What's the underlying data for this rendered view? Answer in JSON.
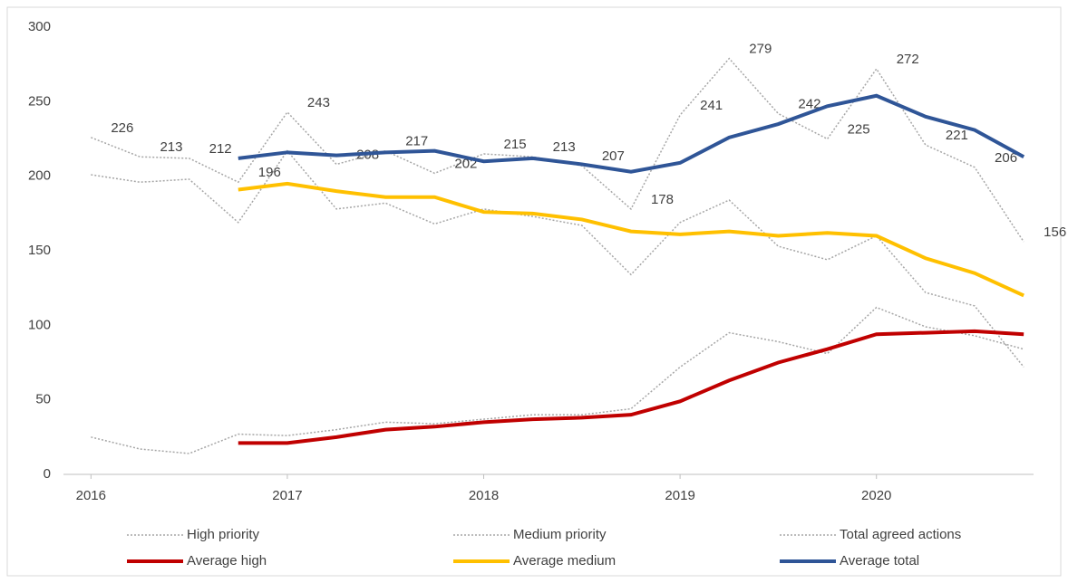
{
  "chart_data": {
    "type": "line",
    "x": [
      2016,
      2016.25,
      2016.5,
      2016.75,
      2017,
      2017.25,
      2017.5,
      2017.75,
      2018,
      2018.25,
      2018.5,
      2018.75,
      2019,
      2019.25,
      2019.5,
      2019.75,
      2020,
      2020.25,
      2020.5,
      2020.75
    ],
    "xlim": [
      2015.86,
      2020.8
    ],
    "xticks": [
      2016,
      2017,
      2018,
      2019,
      2020
    ],
    "ylim": [
      0,
      300
    ],
    "yticks": [
      0,
      50,
      100,
      150,
      200,
      250,
      300
    ],
    "grid": false,
    "legend": "bottom",
    "series": [
      {
        "name": "High priority",
        "color": "#a6a6a6",
        "dashed": true,
        "values": [
          25,
          17,
          14,
          27,
          26,
          30,
          35,
          34,
          37,
          40,
          40,
          44,
          72,
          95,
          89,
          81,
          112,
          99,
          93,
          84
        ]
      },
      {
        "name": "Medium priority",
        "color": "#a6a6a6",
        "dashed": true,
        "values": [
          201,
          196,
          198,
          169,
          217,
          178,
          182,
          168,
          178,
          173,
          167,
          134,
          169,
          184,
          153,
          144,
          160,
          122,
          113,
          72
        ]
      },
      {
        "name": "Total agreed actions",
        "color": "#a6a6a6",
        "dashed": true,
        "labels": true,
        "values": [
          226,
          213,
          212,
          196,
          243,
          208,
          217,
          202,
          215,
          213,
          207,
          178,
          241,
          279,
          242,
          225,
          272,
          221,
          206,
          156
        ]
      },
      {
        "name": "Average high",
        "color": "#c00000",
        "dashed": false,
        "values": [
          null,
          null,
          null,
          21,
          21,
          25,
          30,
          32,
          35,
          37,
          38,
          40,
          49,
          63,
          75,
          84,
          94,
          95,
          96,
          94
        ]
      },
      {
        "name": "Average medium",
        "color": "#ffc000",
        "dashed": false,
        "values": [
          null,
          null,
          null,
          191,
          195,
          190,
          186,
          186,
          176,
          175,
          171,
          163,
          161,
          163,
          160,
          162,
          160,
          145,
          135,
          120
        ]
      },
      {
        "name": "Average total",
        "color": "#2f5597",
        "dashed": false,
        "values": [
          null,
          null,
          null,
          212,
          216,
          214,
          216,
          217,
          210,
          212,
          208,
          203,
          209,
          226,
          235,
          247,
          254,
          240,
          231,
          213
        ]
      }
    ]
  }
}
